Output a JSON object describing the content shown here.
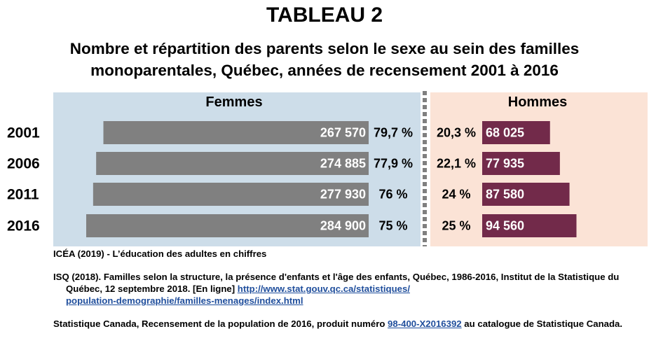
{
  "title": "TABLEAU 2",
  "subtitle_line1": "Nombre et répartition des parents selon le sexe au sein des familles",
  "subtitle_line2": "monoparentales, Québec, années de recensement 2001 à 2016",
  "colors": {
    "femmes_panel": "#cddde9",
    "hommes_panel": "#fbe3d6",
    "femmes_bar": "#808080",
    "hommes_bar": "#722a4a",
    "divider": "#7f7f7f"
  },
  "chart_data": {
    "type": "bar",
    "orientation": "horizontal",
    "categories": [
      "2001",
      "2006",
      "2011",
      "2016"
    ],
    "series": [
      {
        "name": "Femmes",
        "values": [
          267570,
          274885,
          277930,
          284900
        ],
        "value_labels": [
          "267 570",
          "274 885",
          "277 930",
          "284 900"
        ],
        "percent_labels": [
          "79,7 %",
          "77,9 %",
          "76 %",
          "75 %"
        ]
      },
      {
        "name": "Hommes",
        "values": [
          68025,
          77935,
          87580,
          94560
        ],
        "value_labels": [
          "68 025",
          "77 935",
          "87 580",
          "94 560"
        ],
        "percent_labels": [
          "20,3 %",
          "22,1 %",
          "24 %",
          "25 %"
        ]
      }
    ],
    "grid": false
  },
  "sources": {
    "source1": "ICÉA (2019) - L’éducation des adultes en chiffres",
    "source2_text": "ISQ (2018). Familles selon la structure, la présence d'enfants et l'âge des enfants, Québec, 1986-2016, Institut de la Statistique du Québec, 12 septembre 2018. [En ligne] ",
    "source2_link1": "http://www.stat.gouv.qc.ca/statistiques/",
    "source2_link2": "population-demographie/familles-menages/index.html",
    "source3_before": "Statistique Canada, Recensement de la population de 2016, produit numéro ",
    "source3_link": "98-400-X2016392",
    "source3_after": " au catalogue de Statistique Canada."
  }
}
